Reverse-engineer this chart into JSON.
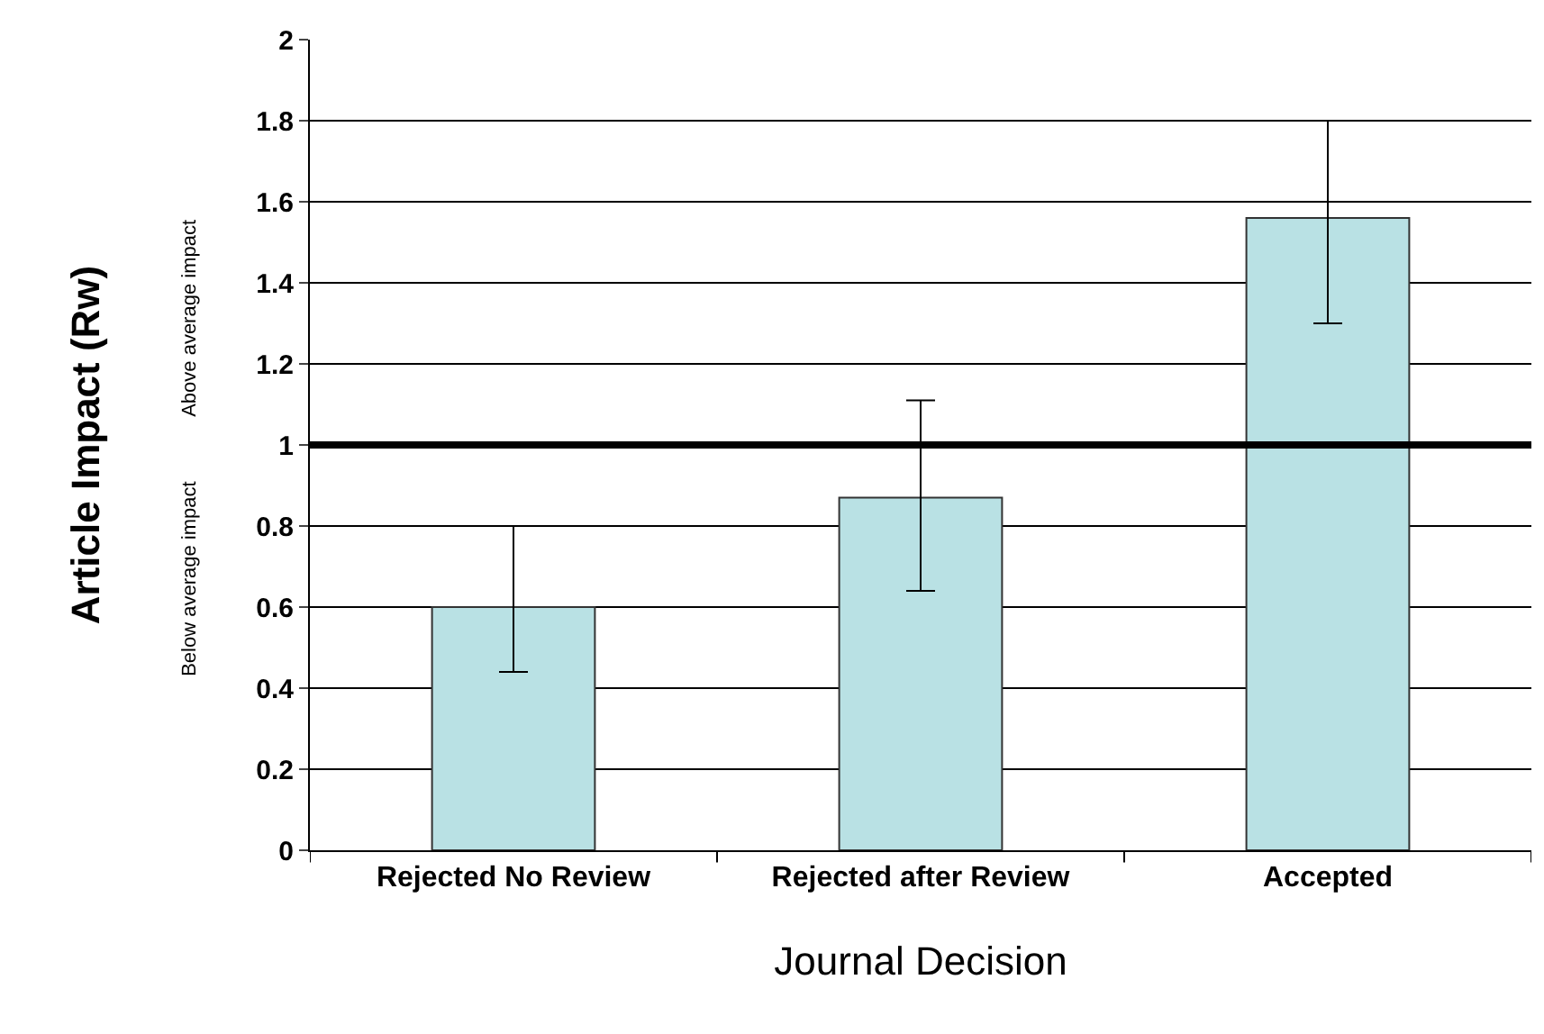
{
  "chart_data": {
    "type": "bar",
    "xlabel": "Journal Decision",
    "ylabel": "Article Impact (Rw)",
    "categories": [
      "Rejected No Review",
      "Rejected after Review",
      "Accepted"
    ],
    "values": [
      0.6,
      0.87,
      1.56
    ],
    "errors": [
      [
        0.44,
        0.8
      ],
      [
        0.64,
        1.11
      ],
      [
        1.3,
        1.8
      ]
    ],
    "color": "#b9e1e4",
    "ylim": [
      0,
      2
    ],
    "yticks": [
      0,
      0.2,
      0.4,
      0.6,
      0.8,
      1,
      1.2,
      1.4,
      1.6,
      1.8,
      2
    ],
    "grid": "y",
    "ref_lines": [
      {
        "axis": "y",
        "value": 1,
        "color": "#000000"
      }
    ],
    "annotations": [
      "Above average impact",
      "Below average impact"
    ]
  }
}
